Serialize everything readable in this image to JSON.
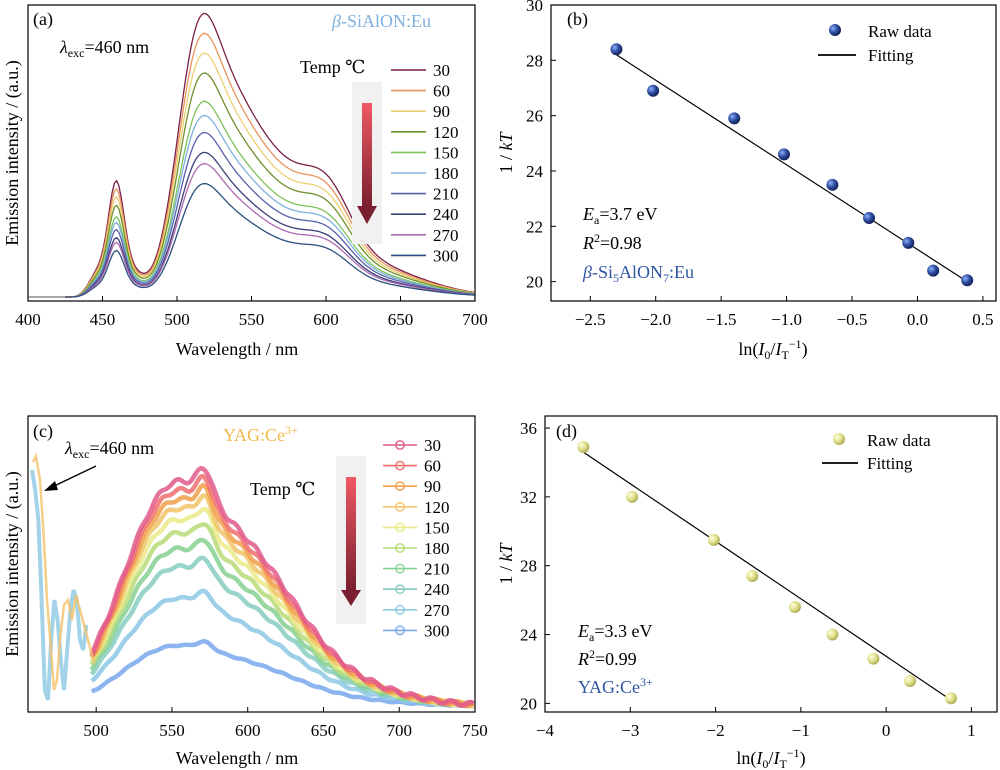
{
  "colors": {
    "sialon_series": [
      "#7a1f4a",
      "#e8935a",
      "#eccf72",
      "#6f8f2c",
      "#7cc35a",
      "#7fb1e0",
      "#565fa8",
      "#3a3f7a",
      "#b06ab0",
      "#2b4f7e"
    ],
    "yag_series": [
      "#e05a8c",
      "#f06e6e",
      "#f0a04a",
      "#f2c36a",
      "#eaea8a",
      "#b8dc78",
      "#86d090",
      "#86ccc0",
      "#8cc8e4",
      "#78a8ec"
    ],
    "blue_point": "#2f4ea0",
    "yellow_point": "#dede8a",
    "sialon_compound_text": "#2e55a4",
    "yag_title_text": "#f0b84a",
    "yag_compound_text": "#2e55a4",
    "sialon_title_text": "#7fb1e0",
    "arrow_dark": "#7a1f2f",
    "arrow_light": "#f05a64"
  },
  "panel_a": {
    "label": "(a)",
    "lambda_symbol": "λ",
    "lambda_subscript": "exc",
    "lambda_value": "=460 nm",
    "title_prefix": "β",
    "title_rest": "-SiAlON:Eu",
    "temp_label": "Temp ℃",
    "xlabel": "Wavelength / nm",
    "ylabel": "Emission intensity / (a.u.)"
  },
  "panel_b": {
    "label": "(b)",
    "legend_raw": "Raw data",
    "legend_fit": "Fitting",
    "ea_symbol": "E",
    "ea_subscript": "a",
    "ea_value": "=3.7 eV",
    "r2_symbol": "R",
    "r2_superscript": "2",
    "r2_value": "=0.98",
    "compound_prefix": "β",
    "compound_part1": "-Si",
    "compound_sub1": "5",
    "compound_part2": "AlON",
    "compound_sub2": "7",
    "compound_part3": ":Eu",
    "ylabel_prefix": "1 / ",
    "ylabel_var": "kT",
    "xlabel_prefix": "ln(",
    "xlabel_i0": "I",
    "xlabel_i0_sub": "0",
    "xlabel_slash": "/",
    "xlabel_it": "I",
    "xlabel_it_sub": "T",
    "xlabel_sup": "−1",
    "xlabel_suffix": ")"
  },
  "panel_c": {
    "label": "(c)",
    "lambda_symbol": "λ",
    "lambda_subscript": "exc",
    "lambda_value": "=460 nm",
    "title_main": "YAG:Ce",
    "title_sup": "3+",
    "temp_label": "Temp ℃",
    "xlabel": "Wavelength / nm",
    "ylabel": "Emission intensity / (a.u.)"
  },
  "panel_d": {
    "label": "(d)",
    "legend_raw": "Raw data",
    "legend_fit": "Fitting",
    "ea_symbol": "E",
    "ea_subscript": "a",
    "ea_value": "=3.3 eV",
    "r2_symbol": "R",
    "r2_superscript": "2",
    "r2_value": "=0.99",
    "compound_main": "YAG:Ce",
    "compound_sup": "3+",
    "ylabel_prefix": "1 / ",
    "ylabel_var": "kT",
    "xlabel_prefix": "ln(",
    "xlabel_i0": "I",
    "xlabel_i0_sub": "0",
    "xlabel_slash": "/",
    "xlabel_it": "I",
    "xlabel_it_sub": "T",
    "xlabel_sup": "−1",
    "xlabel_suffix": ")"
  },
  "chart_data": [
    {
      "type": "line",
      "panel": "a",
      "xlim": [
        400,
        700
      ],
      "xticks": [
        400,
        450,
        500,
        550,
        600,
        650,
        700
      ],
      "series_names": [
        "30",
        "60",
        "90",
        "120",
        "150",
        "180",
        "210",
        "240",
        "270",
        "300"
      ],
      "peak_values": [
        1.0,
        0.93,
        0.86,
        0.79,
        0.69,
        0.64,
        0.58,
        0.51,
        0.47,
        0.4
      ],
      "legend_placement": "top-right",
      "grid": false
    },
    {
      "type": "scatter",
      "panel": "b",
      "xlim": [
        -2.8,
        0.6
      ],
      "ylim": [
        19.3,
        30
      ],
      "xticks": [
        -2.5,
        -2.0,
        -1.5,
        -1.0,
        -0.5,
        0.0,
        0.5
      ],
      "xtick_labels": [
        "−2.5",
        "−2.0",
        "−1.5",
        "−1.0",
        "−0.5",
        "0.0",
        "0.5"
      ],
      "yticks": [
        20,
        22,
        24,
        26,
        28,
        30
      ],
      "x": [
        -2.3,
        -2.02,
        -1.4,
        -1.02,
        -0.65,
        -0.37,
        -0.07,
        0.12,
        0.38
      ],
      "y": [
        28.4,
        26.9,
        25.9,
        24.6,
        23.5,
        22.3,
        21.4,
        20.4,
        20.05
      ],
      "fit_line": {
        "x": [
          -2.3,
          0.38
        ],
        "y": [
          28.2,
          20.0
        ]
      },
      "legend_placement": "top-right",
      "grid": false
    },
    {
      "type": "line",
      "panel": "c",
      "xlim": [
        455,
        750
      ],
      "xticks": [
        500,
        550,
        600,
        650,
        700,
        750
      ],
      "series_names": [
        "30",
        "60",
        "90",
        "120",
        "150",
        "180",
        "210",
        "240",
        "270",
        "300"
      ],
      "peak_values": [
        1.0,
        0.96,
        0.92,
        0.88,
        0.83,
        0.77,
        0.7,
        0.62,
        0.48,
        0.27
      ],
      "legend_placement": "top-right",
      "grid": false
    },
    {
      "type": "scatter",
      "panel": "d",
      "xlim": [
        -4,
        1.3
      ],
      "ylim": [
        19.5,
        36.7
      ],
      "xticks": [
        -4,
        -3,
        -2,
        -1,
        0,
        1
      ],
      "xtick_labels": [
        "−4",
        "−3",
        "−2",
        "−1",
        "0",
        "1"
      ],
      "yticks": [
        20,
        24,
        28,
        32,
        36
      ],
      "x": [
        -3.55,
        -2.98,
        -2.02,
        -1.57,
        -1.07,
        -0.63,
        -0.15,
        0.28,
        0.76
      ],
      "y": [
        34.9,
        32.0,
        29.5,
        27.4,
        25.6,
        24.0,
        22.6,
        21.3,
        20.3
      ],
      "fit_line": {
        "x": [
          -3.55,
          0.76
        ],
        "y": [
          34.6,
          20.2
        ]
      },
      "legend_placement": "top-right",
      "grid": false
    }
  ]
}
